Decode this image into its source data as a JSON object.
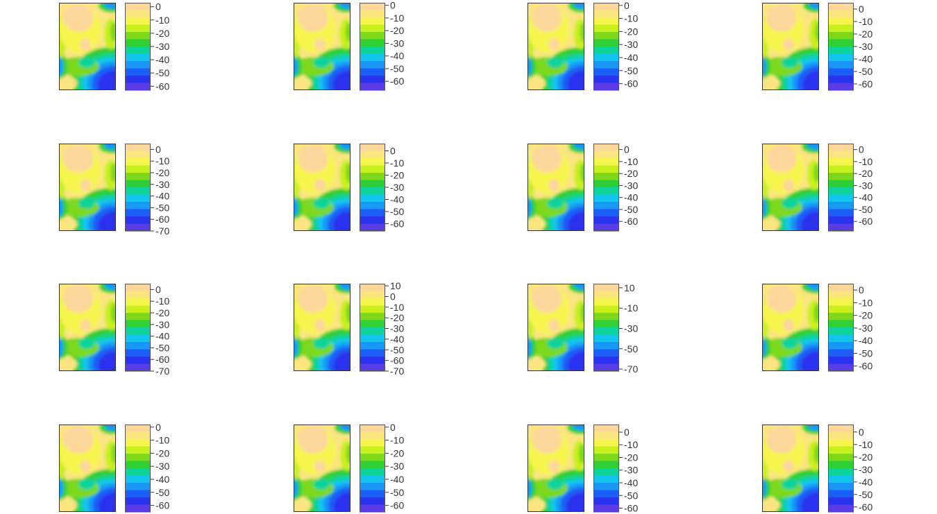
{
  "chart_data": {
    "type": "heatmap",
    "layout": {
      "rows": 4,
      "cols": 4
    },
    "colorscale": [
      "#fcd79b",
      "#fbe57f",
      "#f6f54d",
      "#c7ef1b",
      "#7cd81b",
      "#2fcf37",
      "#0ed39a",
      "#12c4ee",
      "#1998f7",
      "#1d5ef6",
      "#2a33ef",
      "#5a3de6"
    ],
    "panels": [
      {
        "ticks": [
          "0",
          "-10",
          "-20",
          "-30",
          "-40",
          "-50",
          "-60"
        ],
        "range": [
          -63,
          3
        ]
      },
      {
        "ticks": [
          "0",
          "-10",
          "-20",
          "-30",
          "-40",
          "-50",
          "-60"
        ],
        "range": [
          -67,
          2
        ]
      },
      {
        "ticks": [
          "0",
          "-10",
          "-20",
          "-30",
          "-40",
          "-50",
          "-60"
        ],
        "range": [
          -65,
          2
        ]
      },
      {
        "ticks": [
          "0",
          "-10",
          "-20",
          "-30",
          "-40",
          "-50",
          "-60"
        ],
        "range": [
          -65,
          5
        ]
      },
      {
        "ticks": [
          "0",
          "-10",
          "-20",
          "-30",
          "-40",
          "-50",
          "-60",
          "-70"
        ],
        "range": [
          -70,
          5
        ]
      },
      {
        "ticks": [
          "0",
          "-10",
          "-20",
          "-30",
          "-40",
          "-50",
          "-60"
        ],
        "range": [
          -66,
          6
        ]
      },
      {
        "ticks": [
          "0",
          "-10",
          "-20",
          "-30",
          "-40",
          "-50",
          "-60"
        ],
        "range": [
          -68,
          5
        ]
      },
      {
        "ticks": [
          "0",
          "-10",
          "-20",
          "-30",
          "-40",
          "-50",
          "-60"
        ],
        "range": [
          -68,
          5
        ]
      },
      {
        "ticks": [
          "0",
          "-10",
          "-20",
          "-30",
          "-40",
          "-50",
          "-60",
          "-70"
        ],
        "range": [
          -70,
          5
        ]
      },
      {
        "ticks": [
          "10",
          "0",
          "-10",
          "-20",
          "-30",
          "-40",
          "-50",
          "-60",
          "-70"
        ],
        "range": [
          -70,
          12
        ]
      },
      {
        "ticks": [
          "10",
          "-10",
          "-30",
          "-50",
          "-70"
        ],
        "range": [
          -72,
          14
        ]
      },
      {
        "ticks": [
          "0",
          "-10",
          "-20",
          "-30",
          "-40",
          "-50",
          "-60"
        ],
        "range": [
          -64,
          5
        ]
      },
      {
        "ticks": [
          "0",
          "-10",
          "-20",
          "-30",
          "-40",
          "-50",
          "-60"
        ],
        "range": [
          -65,
          2
        ]
      },
      {
        "ticks": [
          "0",
          "-10",
          "-20",
          "-30",
          "-40",
          "-50",
          "-60"
        ],
        "range": [
          -65,
          2
        ]
      },
      {
        "ticks": [
          "0",
          "-10",
          "-20",
          "-30",
          "-40",
          "-50",
          "-60"
        ],
        "range": [
          -63,
          6
        ]
      },
      {
        "ticks": [
          "0",
          "-10",
          "-20",
          "-30",
          "-40",
          "-50",
          "-60"
        ],
        "range": [
          -64,
          6
        ]
      }
    ]
  }
}
